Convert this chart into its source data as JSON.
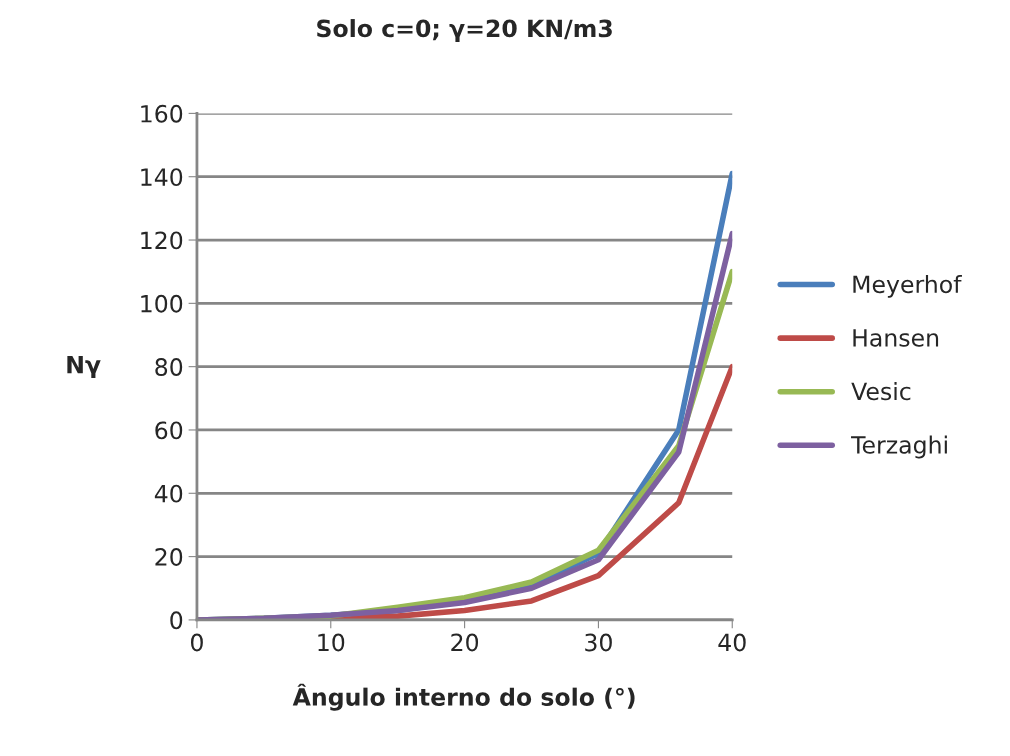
{
  "chart_data": {
    "type": "line",
    "title": "Solo c=0; γ=20 KN/m3",
    "xlabel": "Ângulo interno do solo (°)",
    "ylabel": "Nγ",
    "x": [
      0,
      5,
      10,
      15,
      20,
      25,
      30,
      36,
      40
    ],
    "series": [
      {
        "name": "Meyerhof",
        "color": "#4a7ebb",
        "values": [
          0,
          0.5,
          1.5,
          3,
          6,
          11,
          21,
          60,
          141
        ]
      },
      {
        "name": "Hansen",
        "color": "#be4b48",
        "values": [
          0,
          0.1,
          0.4,
          1.2,
          3,
          6,
          14,
          37,
          80
        ]
      },
      {
        "name": "Vesic",
        "color": "#98b954",
        "values": [
          0,
          0.5,
          1.2,
          4,
          7,
          12,
          22,
          55,
          110
        ]
      },
      {
        "name": "Terzaghi",
        "color": "#7d60a0",
        "values": [
          0,
          0.5,
          1.5,
          3,
          5.5,
          10,
          19,
          53,
          122
        ]
      }
    ],
    "xlim": [
      0,
      40
    ],
    "xticks": [
      0,
      10,
      20,
      30,
      40
    ],
    "ylim": [
      0,
      160
    ],
    "yticks": [
      0,
      20,
      40,
      60,
      80,
      100,
      120,
      140,
      160
    ],
    "grid": "y",
    "legend": "right",
    "marker": "none",
    "line_style": "solid"
  }
}
